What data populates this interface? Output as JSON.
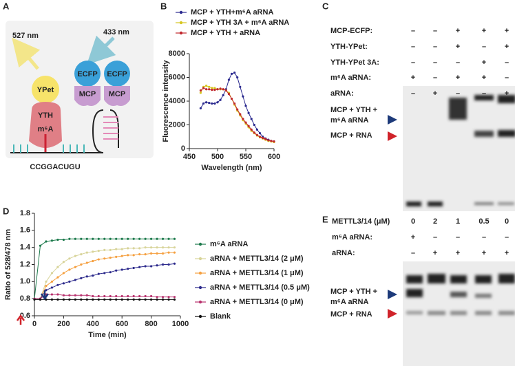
{
  "panel_labels": [
    "A",
    "B",
    "C",
    "D",
    "E"
  ],
  "panel_a": {
    "emission_left": "527 nm",
    "emission_right": "433 nm",
    "ypet": "YPet",
    "ecfp": [
      "ECFP",
      "ECFP"
    ],
    "mcp": [
      "MCP",
      "MCP"
    ],
    "yth": "YTH",
    "m6a": "m⁶A",
    "sequence": "CCGGACUGU"
  },
  "chart_data": [
    {
      "type": "line",
      "legend": "top",
      "xlabel": "Wavelength (nm)",
      "ylabel": "Fluorescence intensity",
      "x": [
        470,
        475,
        480,
        485,
        490,
        495,
        500,
        505,
        510,
        515,
        520,
        525,
        530,
        535,
        540,
        545,
        550,
        555,
        560,
        565,
        570,
        575,
        580,
        585,
        590,
        595,
        600
      ],
      "series": [
        {
          "name": "MCP + YTH+m⁶A aRNA",
          "color": "#2b2a8f",
          "values": [
            3400,
            3800,
            3900,
            3850,
            3800,
            3800,
            3900,
            4100,
            4500,
            5000,
            5800,
            6300,
            6400,
            6000,
            5200,
            4400,
            3600,
            3000,
            2500,
            2000,
            1600,
            1300,
            1000,
            850,
            750,
            650,
            600
          ]
        },
        {
          "name": "MCP + YTH 3A + m⁶A aRNA",
          "color": "#d6c51f",
          "values": [
            4700,
            5200,
            5300,
            5200,
            5100,
            5100,
            5000,
            5000,
            5000,
            4900,
            4700,
            4200,
            3700,
            3200,
            2800,
            2400,
            2100,
            1800,
            1500,
            1300,
            1100,
            950,
            850,
            750,
            650,
            600,
            550
          ]
        },
        {
          "name": "MCP + YTH + aRNA",
          "color": "#c1272d",
          "values": [
            4900,
            5100,
            5000,
            5000,
            4950,
            4950,
            5000,
            5050,
            5000,
            4900,
            4600,
            4200,
            3800,
            3300,
            2900,
            2500,
            2200,
            1900,
            1600,
            1350,
            1150,
            1000,
            900,
            800,
            700,
            650,
            600
          ]
        }
      ],
      "xlim": [
        450,
        600
      ],
      "xticks": [
        450,
        500,
        550,
        600
      ],
      "ylim": [
        0,
        8000
      ],
      "yticks": [
        0,
        2000,
        4000,
        6000,
        8000
      ]
    },
    {
      "type": "line",
      "legend": "right",
      "xlabel": "Time (min)",
      "ylabel": "Ratio of 528/478 nm",
      "x": [
        0,
        40,
        80,
        120,
        160,
        200,
        240,
        280,
        320,
        360,
        400,
        440,
        480,
        520,
        560,
        600,
        640,
        680,
        720,
        760,
        800,
        840,
        880,
        920,
        960
      ],
      "series": [
        {
          "name": "m⁶A aRNA",
          "color": "#1d7a4c",
          "values": [
            0.8,
            1.42,
            1.47,
            1.48,
            1.49,
            1.49,
            1.5,
            1.5,
            1.5,
            1.5,
            1.5,
            1.5,
            1.5,
            1.5,
            1.5,
            1.5,
            1.5,
            1.5,
            1.5,
            1.5,
            1.5,
            1.5,
            1.5,
            1.5,
            1.5
          ]
        },
        {
          "name": "aRNA + METTL3/14 (2 μM)",
          "color": "#d8d49a",
          "values": [
            0.8,
            0.8,
            1.0,
            1.1,
            1.17,
            1.23,
            1.27,
            1.3,
            1.32,
            1.34,
            1.35,
            1.36,
            1.37,
            1.37,
            1.38,
            1.38,
            1.39,
            1.39,
            1.39,
            1.4,
            1.4,
            1.4,
            1.4,
            1.4,
            1.4
          ]
        },
        {
          "name": "aRNA + METTL3/14 (1 μM)",
          "color": "#f5a040",
          "values": [
            0.8,
            0.8,
            0.95,
            1.0,
            1.05,
            1.1,
            1.14,
            1.17,
            1.2,
            1.22,
            1.24,
            1.26,
            1.27,
            1.28,
            1.29,
            1.3,
            1.31,
            1.31,
            1.32,
            1.32,
            1.33,
            1.33,
            1.33,
            1.34,
            1.34
          ]
        },
        {
          "name": "aRNA + METTL3/14 (0.5 μM)",
          "color": "#2c2a8c",
          "values": [
            0.8,
            0.8,
            0.9,
            0.93,
            0.96,
            0.98,
            1.0,
            1.02,
            1.04,
            1.06,
            1.07,
            1.09,
            1.1,
            1.11,
            1.13,
            1.14,
            1.15,
            1.16,
            1.17,
            1.18,
            1.18,
            1.19,
            1.2,
            1.2,
            1.21
          ]
        },
        {
          "name": "aRNA + METTL3/14 (0 μM)",
          "color": "#b8326e",
          "values": [
            0.8,
            0.8,
            0.85,
            0.85,
            0.85,
            0.84,
            0.84,
            0.84,
            0.84,
            0.84,
            0.83,
            0.83,
            0.83,
            0.83,
            0.83,
            0.83,
            0.83,
            0.83,
            0.83,
            0.83,
            0.83,
            0.82,
            0.82,
            0.82,
            0.82
          ]
        },
        {
          "name": "Blank",
          "color": "#111111",
          "values": [
            0.79,
            0.79,
            0.79,
            0.79,
            0.79,
            0.79,
            0.79,
            0.79,
            0.79,
            0.79,
            0.79,
            0.79,
            0.79,
            0.79,
            0.79,
            0.79,
            0.79,
            0.79,
            0.79,
            0.79,
            0.79,
            0.79,
            0.79,
            0.79,
            0.79
          ]
        }
      ],
      "xlim": [
        0,
        1000
      ],
      "xticks": [
        0,
        200,
        400,
        600,
        800,
        1000
      ],
      "ylim": [
        0.6,
        1.8
      ],
      "yticks": [
        0.6,
        0.8,
        {
          "value": 1,
          "label": "1.0"
        },
        1.2,
        1.4,
        1.6,
        1.8
      ]
    }
  ],
  "panel_c": {
    "rows": [
      {
        "label": "MCP-ECFP:",
        "cells": [
          "–",
          "–",
          "+",
          "+",
          "+"
        ]
      },
      {
        "label": "YTH-YPet:",
        "cells": [
          "–",
          "–",
          "+",
          "–",
          "+"
        ]
      },
      {
        "label": "YTH-YPet 3A:",
        "cells": [
          "–",
          "–",
          "–",
          "+",
          "–"
        ]
      },
      {
        "label": "m⁶A aRNA:",
        "cells": [
          "+",
          "–",
          "+",
          "+",
          "–"
        ]
      },
      {
        "label": "aRNA:",
        "cells": [
          "–",
          "+",
          "–",
          "–",
          "+"
        ]
      }
    ],
    "band_labels": {
      "upper": [
        "MCP + YTH +",
        "m⁶A aRNA"
      ],
      "lower": "MCP + RNA"
    }
  },
  "panel_e": {
    "header": {
      "label": "METTL3/14 (μM)",
      "cells": [
        "0",
        "2",
        "1",
        "0.5",
        "0"
      ]
    },
    "rows": [
      {
        "label": "m⁶A aRNA:",
        "cells": [
          "+",
          "–",
          "–",
          "–",
          "–"
        ]
      },
      {
        "label": "aRNA:",
        "cells": [
          "–",
          "+",
          "+",
          "+",
          "+"
        ]
      }
    ],
    "band_labels": {
      "upper": [
        "MCP + YTH +",
        "m⁶A aRNA"
      ],
      "lower": "MCP + RNA"
    }
  }
}
